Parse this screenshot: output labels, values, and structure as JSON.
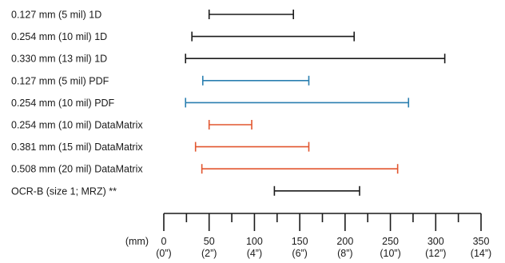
{
  "colors": {
    "black": "#1a1a1a",
    "blue": "#2a7fb0",
    "orange": "#e2562f"
  },
  "chart_data": {
    "type": "range",
    "title": "",
    "xlabel": "",
    "ylabel": "",
    "unit_label": "(mm)",
    "xlim": [
      0,
      350
    ],
    "ticks_mm": [
      0,
      50,
      100,
      150,
      200,
      250,
      300,
      350
    ],
    "ticks_in": [
      "(0”)",
      "(2”)",
      "(4”)",
      "(6”)",
      "(8”)",
      "(10”)",
      "(12”)",
      "(14”)"
    ],
    "minor_tick_step": 25,
    "grid": false,
    "series": [
      {
        "label": "0.127 mm (5 mil) 1D",
        "min": 50,
        "max": 143,
        "color": "black"
      },
      {
        "label": "0.254 mm (10 mil) 1D",
        "min": 31,
        "max": 210,
        "color": "black"
      },
      {
        "label": "0.330 mm (13 mil) 1D",
        "min": 24,
        "max": 310,
        "color": "black"
      },
      {
        "label": "0.127 mm (5 mil) PDF",
        "min": 43,
        "max": 160,
        "color": "blue"
      },
      {
        "label": "0.254 mm (10 mil) PDF",
        "min": 24,
        "max": 270,
        "color": "blue"
      },
      {
        "label": "0.254 mm (10 mil) DataMatrix",
        "min": 50,
        "max": 97,
        "color": "orange"
      },
      {
        "label": "0.381 mm (15 mil) DataMatrix",
        "min": 35,
        "max": 160,
        "color": "orange"
      },
      {
        "label": "0.508 mm (20 mil) DataMatrix",
        "min": 42,
        "max": 258,
        "color": "orange"
      },
      {
        "label": "OCR-B (size 1; MRZ) **",
        "min": 122,
        "max": 216,
        "color": "black"
      }
    ]
  }
}
